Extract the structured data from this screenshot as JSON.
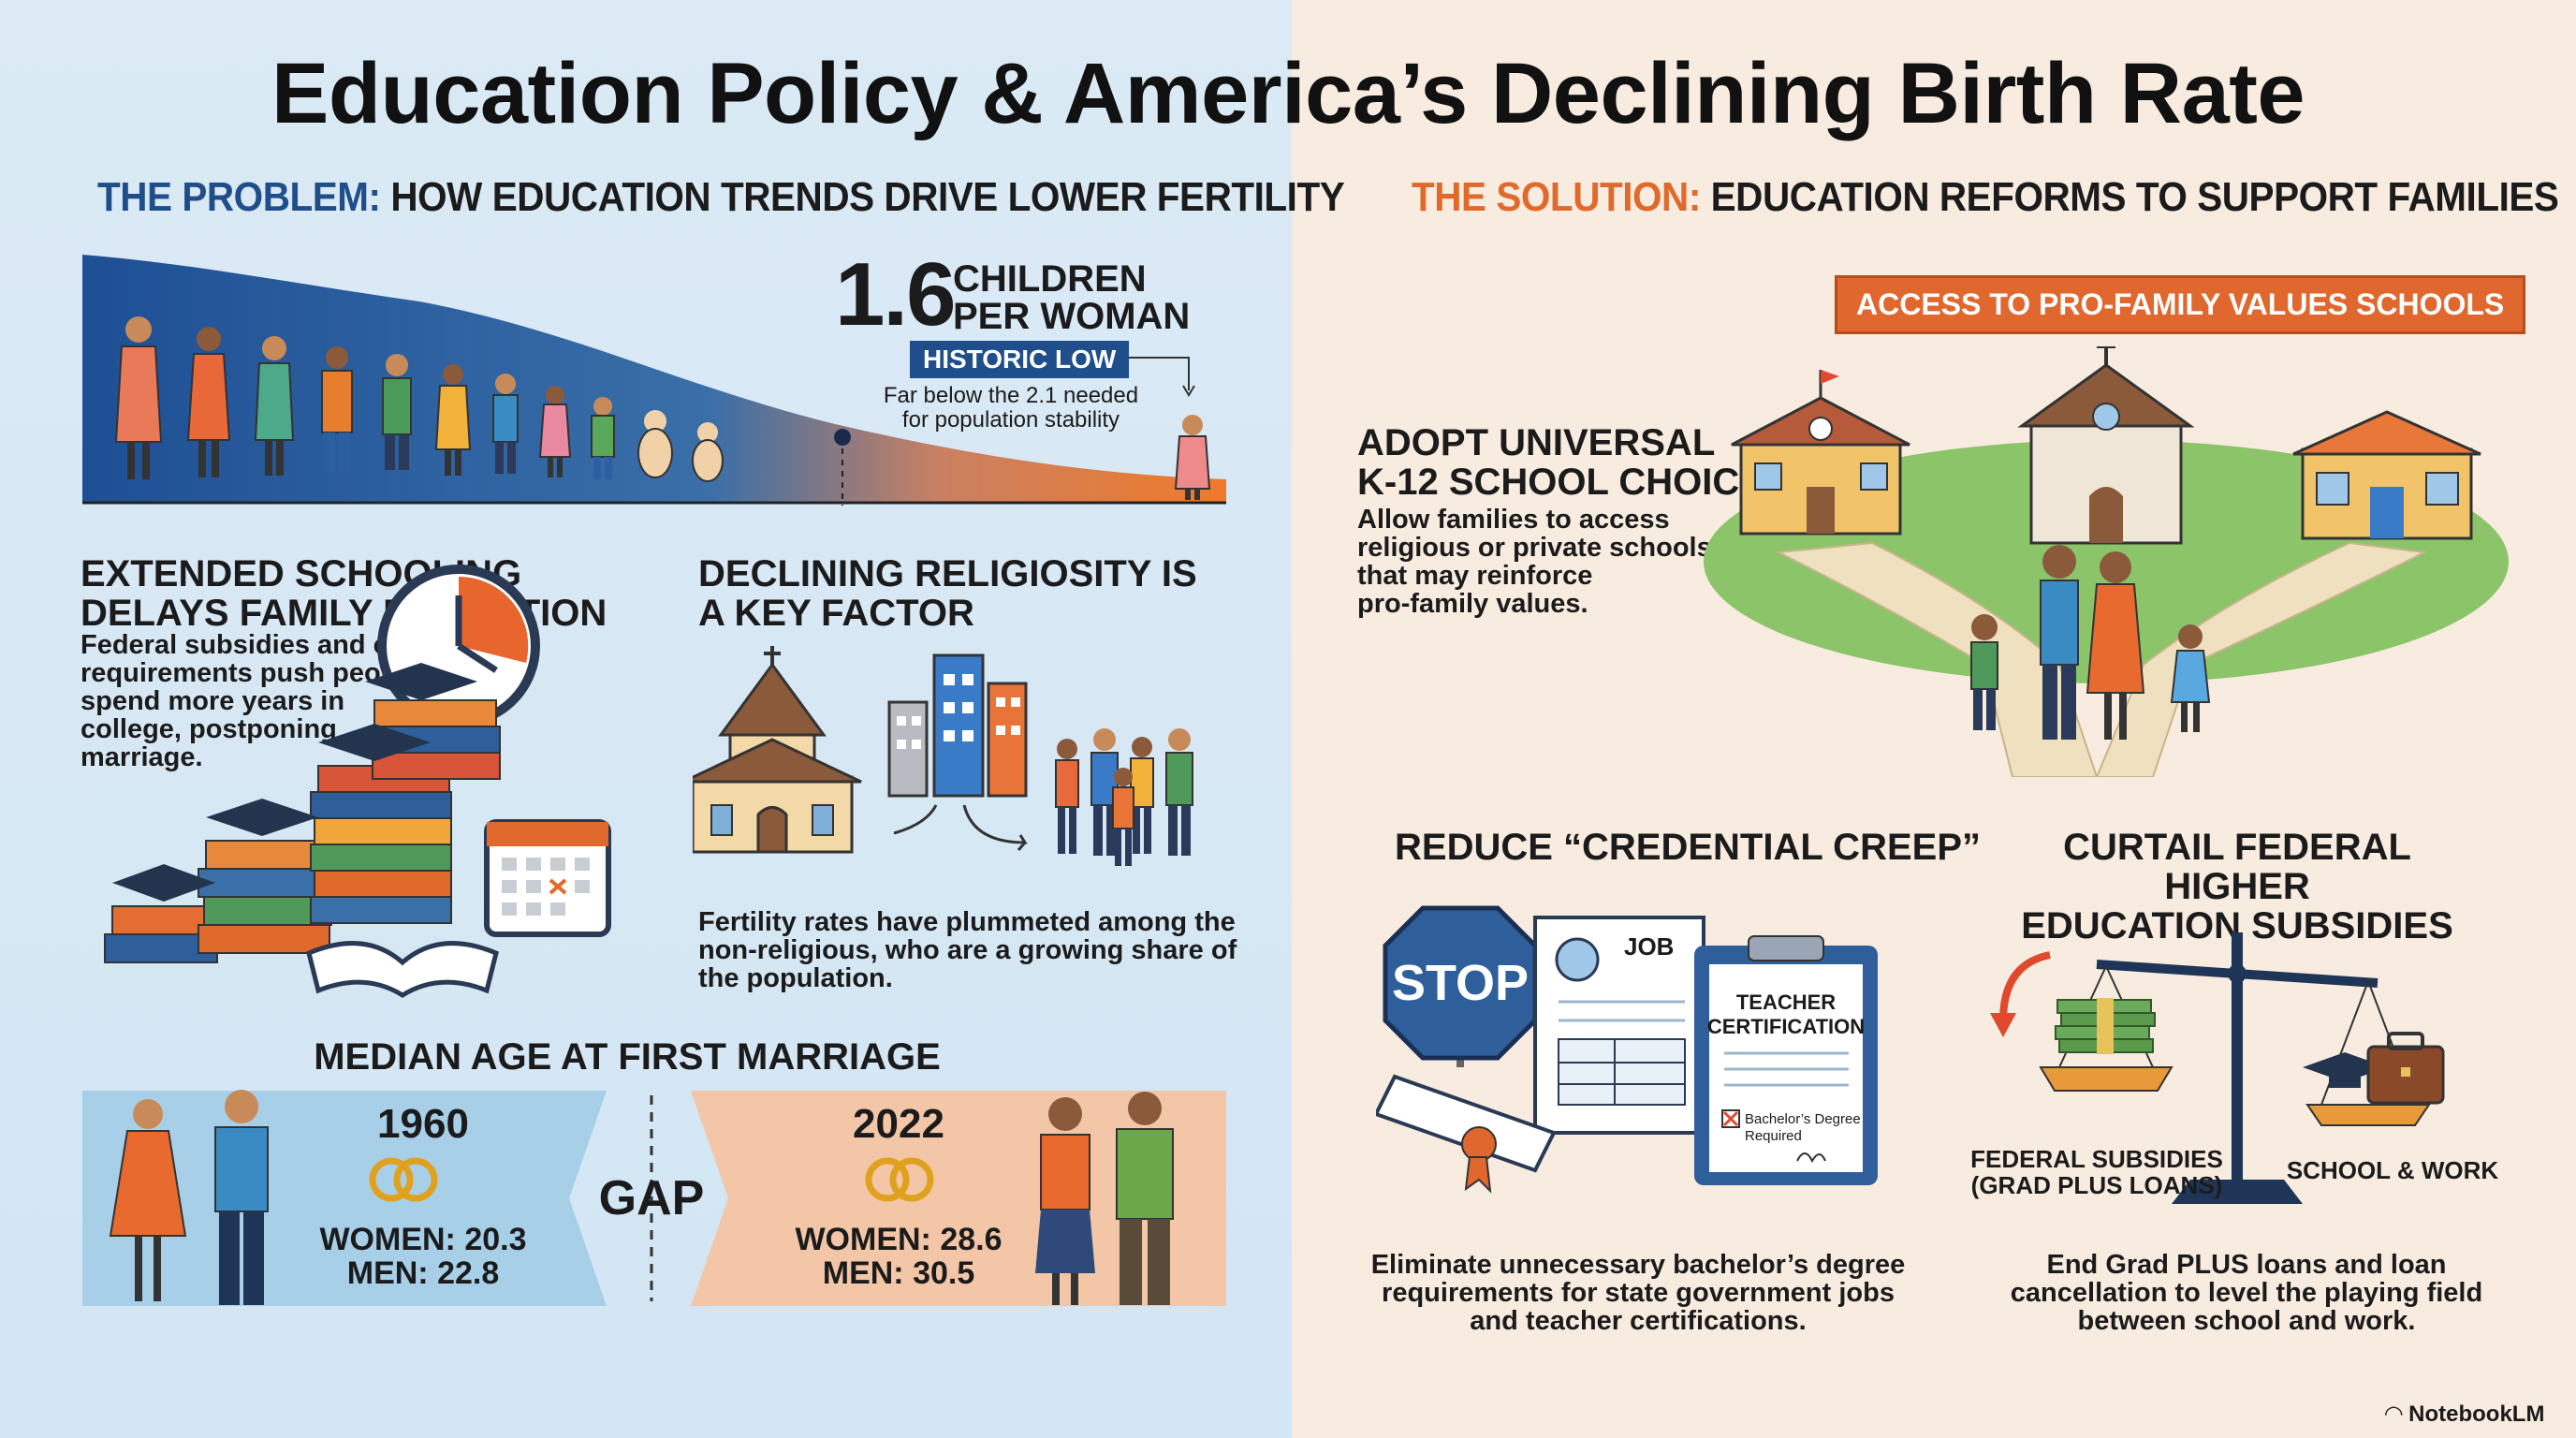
{
  "title": "Education Policy & America’s Declining Birth Rate",
  "problem": {
    "keyword": "THE PROBLEM:",
    "heading": "HOW EDUCATION TRENDS DRIVE LOWER FERTILITY",
    "stat_number": "1.6",
    "stat_line1": "CHILDREN",
    "stat_line2": "PER WOMAN",
    "badge": "HISTORIC LOW",
    "note_line1": "Far below the 2.1 needed",
    "note_line2": "for population stability",
    "schooling": {
      "title_line1": "EXTENDED SCHOOLING",
      "title_line2": "DELAYS FAMILY FORMATION",
      "body_lines": [
        "Federal subsidies and credential",
        "requirements push people to",
        "spend more years in",
        "college, postponing",
        "marriage."
      ]
    },
    "religiosity": {
      "title_line1": "DECLINING RELIGIOSITY IS",
      "title_line2": "A KEY FACTOR",
      "body_lines": [
        "Fertility rates have plummeted among the",
        "non-religious, who are a growing share of",
        "the population."
      ]
    },
    "marriage": {
      "title": "MEDIAN AGE AT FIRST MARRIAGE",
      "left_year": "1960",
      "left_women": "WOMEN: 20.3",
      "left_men": "MEN: 22.8",
      "gap": "GAP",
      "right_year": "2022",
      "right_women": "WOMEN: 28.6",
      "right_men": "MEN: 30.5"
    }
  },
  "solution": {
    "keyword": "THE SOLUTION:",
    "heading": "EDUCATION REFORMS TO SUPPORT FAMILIES",
    "pill": "ACCESS TO PRO-FAMILY VALUES SCHOOLS",
    "choice": {
      "title_line1": "ADOPT UNIVERSAL",
      "title_line2": "K-12 SCHOOL CHOICE",
      "body_lines": [
        "Allow families to access",
        "religious or private schools",
        "that may reinforce",
        "pro-family values."
      ]
    },
    "credential": {
      "title": "REDUCE “CREDENTIAL CREEP”",
      "stop": "STOP",
      "job": "JOB",
      "cert_line1": "TEACHER",
      "cert_line2": "CERTIFICATION",
      "check_line1": "Bachelor’s Degree",
      "check_line2": "Required",
      "body_lines": [
        "Eliminate unnecessary bachelor’s degree",
        "requirements for state government jobs",
        "and teacher certifications."
      ]
    },
    "subsidies": {
      "title_line1": "CURTAIL FEDERAL HIGHER",
      "title_line2": "EDUCATION SUBSIDIES",
      "left_label_line1": "FEDERAL SUBSIDIES",
      "left_label_line2": "(GRAD PLUS LOANS)",
      "right_label": "SCHOOL & WORK",
      "body_lines": [
        "End Grad PLUS loans and loan",
        "cancellation to level the playing field",
        "between school and work."
      ]
    }
  },
  "brand": "NotebookLM",
  "colors": {
    "blue": "#1f4e8a",
    "orange": "#e0672e",
    "left_bg": "#dbeaf5",
    "right_bg": "#f8ebdf"
  }
}
